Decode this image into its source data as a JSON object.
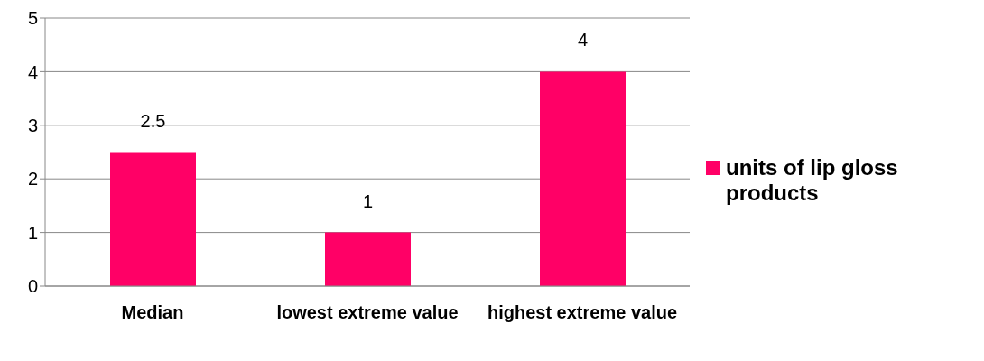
{
  "chart_data": {
    "type": "bar",
    "categories": [
      "Median",
      "lowest extreme value",
      "highest extreme value"
    ],
    "series": [
      {
        "name": "units of lip gloss products",
        "color": "#ff0066",
        "values": [
          2.5,
          1,
          4
        ]
      }
    ],
    "ylim": [
      0,
      5
    ],
    "yticks": [
      0,
      1,
      2,
      3,
      4,
      5
    ],
    "grid": "y",
    "legend": "right",
    "data_labels": true
  }
}
